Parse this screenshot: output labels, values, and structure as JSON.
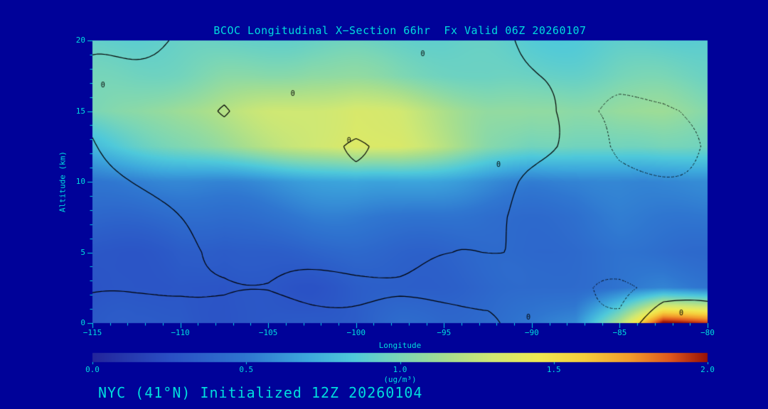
{
  "colors": {
    "background": "#000299",
    "text": "#00DDDD",
    "contour": "#000000"
  },
  "title": {
    "text": "BCOC Longitudinal X−Section 66hr  Fx Valid 06Z 20260107"
  },
  "footer": {
    "text": "NYC (41°N) Initialized 12Z 20260104"
  },
  "chart_data": {
    "type": "filled-contour-cross-section",
    "title": "BCOC Longitudinal X−Section 66hr  Fx Valid 06Z 20260107",
    "xlabel": "Longitude",
    "ylabel": "Altitude (km)",
    "units_label": "(ug/m³)",
    "xlim": [
      -115,
      -80
    ],
    "ylim": [
      0,
      20
    ],
    "clim": [
      0,
      2
    ],
    "x_minor_step": 1,
    "y_minor_step": 1,
    "x_ticks": [
      {
        "v": -115,
        "label": "−115"
      },
      {
        "v": -110,
        "label": "−110"
      },
      {
        "v": -105,
        "label": "−105"
      },
      {
        "v": -100,
        "label": "−100"
      },
      {
        "v": -95,
        "label": "−95"
      },
      {
        "v": -90,
        "label": "−90"
      },
      {
        "v": -85,
        "label": "−85"
      },
      {
        "v": -80,
        "label": "−80"
      }
    ],
    "y_ticks": [
      {
        "v": 0,
        "label": "0"
      },
      {
        "v": 5,
        "label": "5"
      },
      {
        "v": 10,
        "label": "10"
      },
      {
        "v": 15,
        "label": "15"
      },
      {
        "v": 20,
        "label": "20"
      }
    ],
    "colorbar_ticks": [
      {
        "v": 0,
        "label": "0.0"
      },
      {
        "v": 0.5,
        "label": "0.5"
      },
      {
        "v": 1,
        "label": "1.0"
      },
      {
        "v": 1.5,
        "label": "1.5"
      },
      {
        "v": 2,
        "label": "2.0"
      }
    ],
    "colormap": [
      [
        0.0,
        "#23259B"
      ],
      [
        0.25,
        "#2A4FC4"
      ],
      [
        0.5,
        "#2F76D0"
      ],
      [
        0.7,
        "#3DA8DC"
      ],
      [
        0.85,
        "#4FC9DA"
      ],
      [
        1.0,
        "#7BD6B6"
      ],
      [
        1.15,
        "#A6DE8F"
      ],
      [
        1.3,
        "#D0E873"
      ],
      [
        1.45,
        "#EFEA52"
      ],
      [
        1.6,
        "#F6CE3C"
      ],
      [
        1.75,
        "#F29B2B"
      ],
      [
        1.88,
        "#DE571D"
      ],
      [
        2.0,
        "#971105"
      ]
    ],
    "grid": {
      "lon": [
        -115,
        -112.5,
        -110,
        -107.5,
        -105,
        -102.5,
        -100,
        -97.5,
        -95,
        -92.5,
        -90,
        -87.5,
        -85,
        -82.5,
        -80
      ],
      "alt": [
        0,
        2.5,
        5,
        7.5,
        10,
        12.5,
        15,
        17.5,
        20
      ],
      "values_ug_m3": [
        [
          0.3,
          0.3,
          0.34,
          0.3,
          0.3,
          0.34,
          0.34,
          0.4,
          0.4,
          0.45,
          0.5,
          0.6,
          1.2,
          2.0,
          1.9
        ],
        [
          0.26,
          0.28,
          0.3,
          0.26,
          0.3,
          0.3,
          0.34,
          0.34,
          0.36,
          0.38,
          0.4,
          0.45,
          0.5,
          0.55,
          0.5
        ],
        [
          0.3,
          0.32,
          0.34,
          0.3,
          0.34,
          0.38,
          0.4,
          0.4,
          0.4,
          0.4,
          0.4,
          0.42,
          0.45,
          0.45,
          0.45
        ],
        [
          0.4,
          0.42,
          0.44,
          0.44,
          0.48,
          0.5,
          0.5,
          0.5,
          0.48,
          0.45,
          0.45,
          0.45,
          0.5,
          0.5,
          0.5
        ],
        [
          0.5,
          0.52,
          0.55,
          0.58,
          0.62,
          0.66,
          0.7,
          0.68,
          0.64,
          0.6,
          0.55,
          0.55,
          0.58,
          0.58,
          0.56
        ],
        [
          0.8,
          0.9,
          1.0,
          1.1,
          1.2,
          1.3,
          1.4,
          1.34,
          1.2,
          1.05,
          0.95,
          0.95,
          1.0,
          1.0,
          0.95
        ],
        [
          1.0,
          1.06,
          1.15,
          1.2,
          1.26,
          1.3,
          1.34,
          1.3,
          1.2,
          1.1,
          1.05,
          1.05,
          1.1,
          1.1,
          1.05
        ],
        [
          0.95,
          0.97,
          1.0,
          1.05,
          1.05,
          1.08,
          1.05,
          1.0,
          0.98,
          0.95,
          0.95,
          0.95,
          0.97,
          0.97,
          0.95
        ],
        [
          0.9,
          0.9,
          0.92,
          0.92,
          0.95,
          0.95,
          0.95,
          0.93,
          0.9,
          0.9,
          0.88,
          0.88,
          0.9,
          0.9,
          0.9
        ]
      ]
    },
    "anomaly_contours": {
      "solid_level": 0,
      "dotted_level": -0.045,
      "values": [
        [
          0.05,
          0.05,
          0.06,
          0.05,
          0.06,
          0.05,
          0.04,
          0.03,
          0.03,
          0.02,
          -0.03,
          -0.04,
          -0.02,
          0.06,
          0.04
        ],
        [
          -0.02,
          -0.02,
          -0.015,
          -0.02,
          -0.01,
          -0.02,
          -0.02,
          -0.02,
          -0.03,
          -0.03,
          -0.04,
          -0.04,
          -0.04,
          -0.03,
          -0.03
        ],
        [
          -0.03,
          -0.03,
          -0.02,
          0.0,
          0.02,
          0.04,
          0.05,
          0.04,
          0.02,
          0.0,
          -0.02,
          -0.03,
          -0.03,
          -0.03,
          -0.03
        ],
        [
          -0.03,
          -0.02,
          0.0,
          0.02,
          0.04,
          0.05,
          0.06,
          0.05,
          0.03,
          0.01,
          -0.01,
          -0.02,
          -0.03,
          -0.03,
          -0.03
        ],
        [
          -0.02,
          0.0,
          0.02,
          0.03,
          0.02,
          0.04,
          0.05,
          0.06,
          0.05,
          0.03,
          0.0,
          -0.02,
          -0.03,
          -0.03,
          -0.03
        ],
        [
          0.0,
          0.02,
          0.05,
          0.08,
          0.06,
          0.1,
          -0.02,
          0.1,
          0.08,
          0.05,
          0.02,
          -0.03,
          -0.05,
          -0.05,
          -0.04
        ],
        [
          0.02,
          0.05,
          0.1,
          -0.02,
          0.08,
          0.12,
          0.15,
          0.12,
          0.1,
          0.06,
          0.02,
          -0.046,
          -0.055,
          -0.055,
          -0.04
        ],
        [
          0.0,
          0.02,
          0.05,
          0.06,
          0.05,
          0.08,
          0.1,
          0.08,
          0.05,
          0.02,
          0.0,
          -0.02,
          -0.03,
          -0.03,
          -0.02
        ],
        [
          -0.02,
          0.0,
          0.01,
          0.02,
          0.02,
          0.03,
          0.04,
          0.03,
          0.01,
          0.0,
          -0.01,
          -0.02,
          -0.02,
          -0.02,
          -0.02
        ]
      ]
    },
    "contour_labels": [
      {
        "lon": -114.4,
        "alt": 16.8,
        "text": "0"
      },
      {
        "lon": -103.6,
        "alt": 16.2,
        "text": "0"
      },
      {
        "lon": -96.2,
        "alt": 19.0,
        "text": "0"
      },
      {
        "lon": -100.4,
        "alt": 12.9,
        "text": "0"
      },
      {
        "lon": -91.9,
        "alt": 11.2,
        "text": "0"
      },
      {
        "lon": -90.2,
        "alt": 0.4,
        "text": "0"
      },
      {
        "lon": -81.5,
        "alt": 0.7,
        "text": "0"
      }
    ]
  }
}
